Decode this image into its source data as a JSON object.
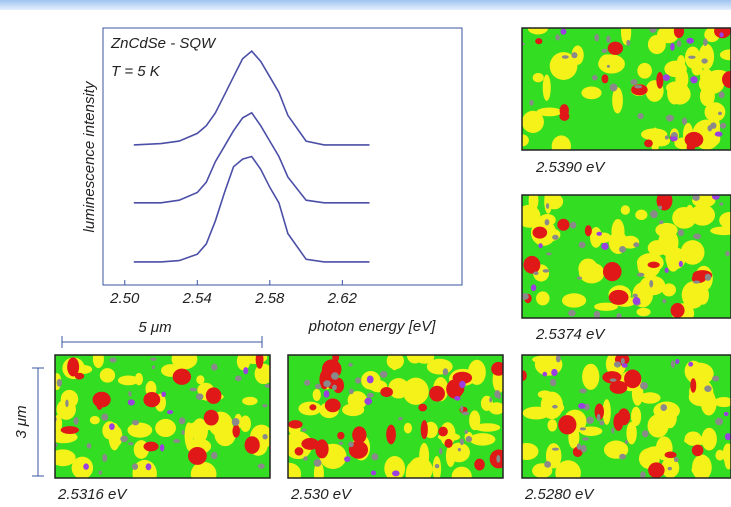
{
  "chart_data": {
    "type": "line",
    "title": "ZnCdSe - SQW",
    "subtitle": "T = 5 K",
    "x_label": "photon energy [eV]",
    "y_label": "luminescence intensity",
    "x": [
      2.505,
      2.52,
      2.53,
      2.54,
      2.545,
      2.55,
      2.555,
      2.56,
      2.565,
      2.57,
      2.575,
      2.58,
      2.585,
      2.59,
      2.6,
      2.61,
      2.62,
      2.635
    ],
    "series": [
      {
        "color": "#4b4fa6",
        "values": [
          5.45,
          5.5,
          5.6,
          5.9,
          6.2,
          6.7,
          7.4,
          8.1,
          8.8,
          9.1,
          8.7,
          8.1,
          7.5,
          6.6,
          5.6,
          5.45,
          5.45,
          5.45
        ]
      },
      {
        "color": "#4b4fa6",
        "values": [
          3.2,
          3.2,
          3.3,
          3.6,
          4.0,
          4.8,
          5.4,
          6.0,
          6.5,
          6.7,
          6.2,
          5.6,
          5.0,
          4.2,
          3.3,
          3.2,
          3.2,
          3.2
        ]
      },
      {
        "color": "#4b4fa6",
        "values": [
          0.9,
          0.9,
          0.95,
          1.2,
          1.6,
          2.5,
          3.6,
          4.6,
          4.9,
          5.0,
          4.5,
          3.8,
          3.2,
          2.0,
          1.0,
          0.9,
          0.9,
          0.9
        ]
      }
    ],
    "xlim": [
      2.488,
      2.686
    ],
    "ylim": [
      0,
      10
    ],
    "xticks": [
      {
        "value": 2.5,
        "label": "2.50"
      },
      {
        "value": 2.54,
        "label": "2.54"
      },
      {
        "value": 2.58,
        "label": "2.58"
      },
      {
        "value": 2.62,
        "label": "2.62"
      }
    ]
  },
  "maps": [
    {
      "label": "2.5390 eV"
    },
    {
      "label": "2.5374 eV"
    },
    {
      "label": "2.5316 eV"
    },
    {
      "label": "2.530 eV"
    },
    {
      "label": "2.5280 eV"
    }
  ],
  "scale": {
    "width": "5 μm",
    "height": "3 μm"
  }
}
